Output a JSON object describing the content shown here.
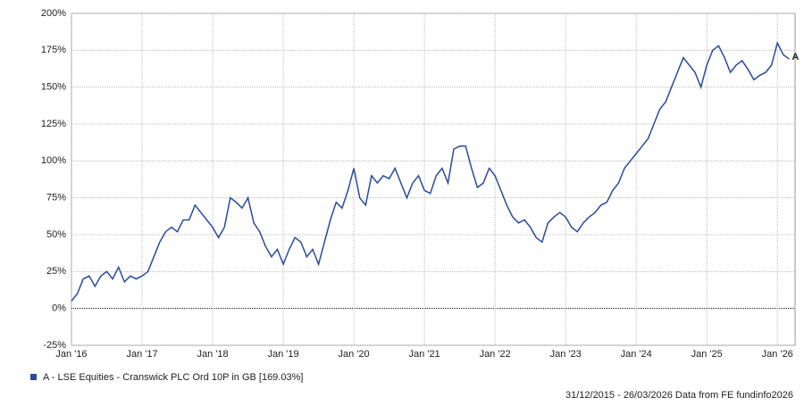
{
  "chart_data": {
    "type": "line",
    "series": [
      {
        "name": "A - LSE Equities - Cranswick PLC Ord 10P in GB [169.03%]",
        "color": "#2a4b9b",
        "values": [
          5,
          10,
          20,
          22,
          15,
          22,
          25,
          20,
          28,
          18,
          22,
          20,
          22,
          25,
          35,
          45,
          52,
          55,
          52,
          60,
          60,
          70,
          65,
          60,
          55,
          48,
          55,
          75,
          72,
          68,
          75,
          58,
          52,
          42,
          35,
          40,
          30,
          40,
          48,
          45,
          35,
          40,
          30,
          45,
          60,
          72,
          68,
          80,
          95,
          75,
          70,
          90,
          85,
          90,
          88,
          95,
          85,
          75,
          85,
          90,
          80,
          78,
          90,
          95,
          85,
          108,
          110,
          110,
          95,
          82,
          85,
          95,
          90,
          80,
          70,
          62,
          58,
          60,
          55,
          48,
          45,
          58,
          62,
          65,
          62,
          55,
          52,
          58,
          62,
          65,
          70,
          72,
          80,
          85,
          95,
          100,
          105,
          110,
          115,
          125,
          135,
          140,
          150,
          160,
          170,
          165,
          160,
          150,
          165,
          175,
          178,
          170,
          160,
          165,
          168,
          162,
          155,
          158,
          160,
          165,
          180,
          172,
          169.03
        ]
      }
    ],
    "x": [
      "2016-01",
      "2016-02",
      "2016-03",
      "2016-04",
      "2016-05",
      "2016-06",
      "2016-07",
      "2016-08",
      "2016-09",
      "2016-10",
      "2016-11",
      "2016-12",
      "2017-01",
      "2017-02",
      "2017-03",
      "2017-04",
      "2017-05",
      "2017-06",
      "2017-07",
      "2017-08",
      "2017-09",
      "2017-10",
      "2017-11",
      "2017-12",
      "2018-01",
      "2018-02",
      "2018-03",
      "2018-04",
      "2018-05",
      "2018-06",
      "2018-07",
      "2018-08",
      "2018-09",
      "2018-10",
      "2018-11",
      "2018-12",
      "2019-01",
      "2019-02",
      "2019-03",
      "2019-04",
      "2019-05",
      "2019-06",
      "2019-07",
      "2019-08",
      "2019-09",
      "2019-10",
      "2019-11",
      "2019-12",
      "2020-01",
      "2020-02",
      "2020-03",
      "2020-04",
      "2020-05",
      "2020-06",
      "2020-07",
      "2020-08",
      "2020-09",
      "2020-10",
      "2020-11",
      "2020-12",
      "2021-01",
      "2021-02",
      "2021-03",
      "2021-04",
      "2021-05",
      "2021-06",
      "2021-07",
      "2021-08",
      "2021-09",
      "2021-10",
      "2021-11",
      "2021-12",
      "2022-01",
      "2022-02",
      "2022-03",
      "2022-04",
      "2022-05",
      "2022-06",
      "2022-07",
      "2022-08",
      "2022-09",
      "2022-10",
      "2022-11",
      "2022-12",
      "2023-01",
      "2023-02",
      "2023-03",
      "2023-04",
      "2023-05",
      "2023-06",
      "2023-07",
      "2023-08",
      "2023-09",
      "2023-10",
      "2023-11",
      "2023-12",
      "2024-01",
      "2024-02",
      "2024-03",
      "2024-04",
      "2024-05",
      "2024-06",
      "2024-07",
      "2024-08",
      "2024-09",
      "2024-10",
      "2024-11",
      "2024-12",
      "2025-01",
      "2025-02",
      "2025-03",
      "2025-04",
      "2025-05",
      "2025-06",
      "2025-07",
      "2025-08",
      "2025-09",
      "2025-10",
      "2025-11",
      "2025-12",
      "2026-01",
      "2026-02",
      "2026-03"
    ],
    "xlim": [
      "2016-01",
      "2026-04"
    ],
    "xticks": [
      {
        "value": "2016-01",
        "label": "Jan '16"
      },
      {
        "value": "2017-01",
        "label": "Jan '17"
      },
      {
        "value": "2018-01",
        "label": "Jan '18"
      },
      {
        "value": "2019-01",
        "label": "Jan '19"
      },
      {
        "value": "2020-01",
        "label": "Jan '20"
      },
      {
        "value": "2021-01",
        "label": "Jan '21"
      },
      {
        "value": "2022-01",
        "label": "Jan '22"
      },
      {
        "value": "2023-01",
        "label": "Jan '23"
      },
      {
        "value": "2024-01",
        "label": "Jan '24"
      },
      {
        "value": "2025-01",
        "label": "Jan '25"
      },
      {
        "value": "2026-01",
        "label": "Jan '26"
      }
    ],
    "ylim": [
      -25,
      200
    ],
    "yticks": [
      {
        "value": -25,
        "label": "-25%"
      },
      {
        "value": 0,
        "label": "0%"
      },
      {
        "value": 25,
        "label": "25%"
      },
      {
        "value": 50,
        "label": "50%"
      },
      {
        "value": 75,
        "label": "75%"
      },
      {
        "value": 100,
        "label": "100%"
      },
      {
        "value": 125,
        "label": "125%"
      },
      {
        "value": 150,
        "label": "150%"
      },
      {
        "value": 175,
        "label": "175%"
      },
      {
        "value": 200,
        "label": "200%"
      }
    ],
    "grid": true,
    "end_label": "A",
    "footer": "31/12/2015 - 26/03/2026 Data from FE fundinfo2026"
  }
}
